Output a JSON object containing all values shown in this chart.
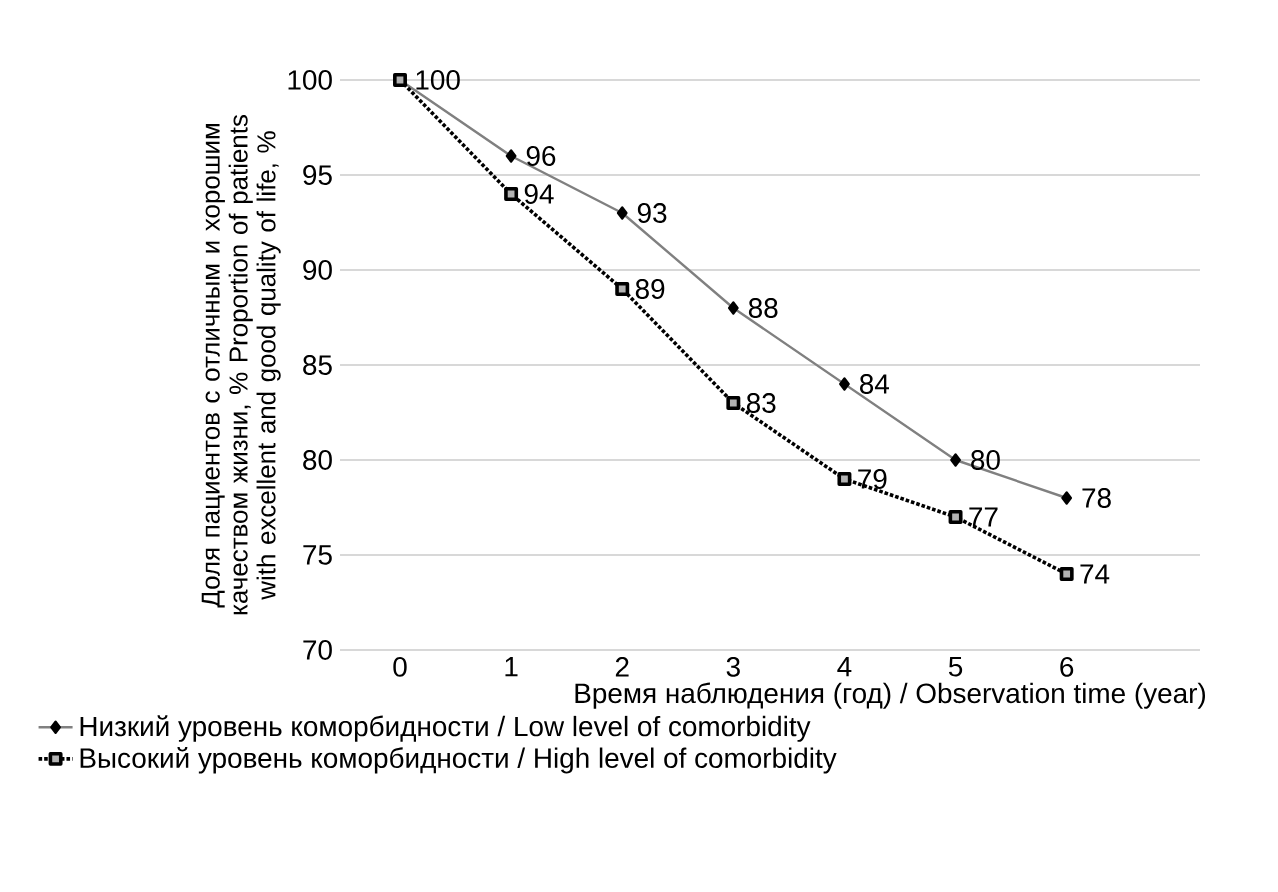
{
  "chart_data": {
    "type": "line",
    "xlabel": "Время наблюдения (год) / Observation time (year)",
    "ylabel": "Доля пациентов с отличным и хорошим качеством жизни, % Proportion of patients with excellent and good quality of life, %",
    "categories": [
      "0",
      "1",
      "2",
      "3",
      "4",
      "5",
      "6"
    ],
    "series": [
      {
        "name": "Низкий уровень коморбидности / Low level of comorbidity",
        "color": "#808080",
        "marker": "diamond",
        "line_style": "solid",
        "values": [
          100,
          96,
          93,
          88,
          84,
          80,
          78
        ],
        "value_labels": [
          "100",
          "96",
          "93",
          "88",
          "84",
          "80",
          "78"
        ]
      },
      {
        "name": "Высокий уровень коморбидности / High level of comorbidity",
        "color": "#000000",
        "marker": "square",
        "line_style": "dotted",
        "values": [
          100,
          94,
          89,
          83,
          79,
          77,
          74
        ],
        "value_labels": [
          null,
          "94",
          "89",
          "83",
          "79",
          "77",
          "74"
        ]
      }
    ],
    "ylim": [
      70,
      100
    ],
    "yticks": [
      70,
      75,
      80,
      85,
      90,
      95,
      100
    ],
    "grid": "y",
    "legend": "bottom"
  }
}
